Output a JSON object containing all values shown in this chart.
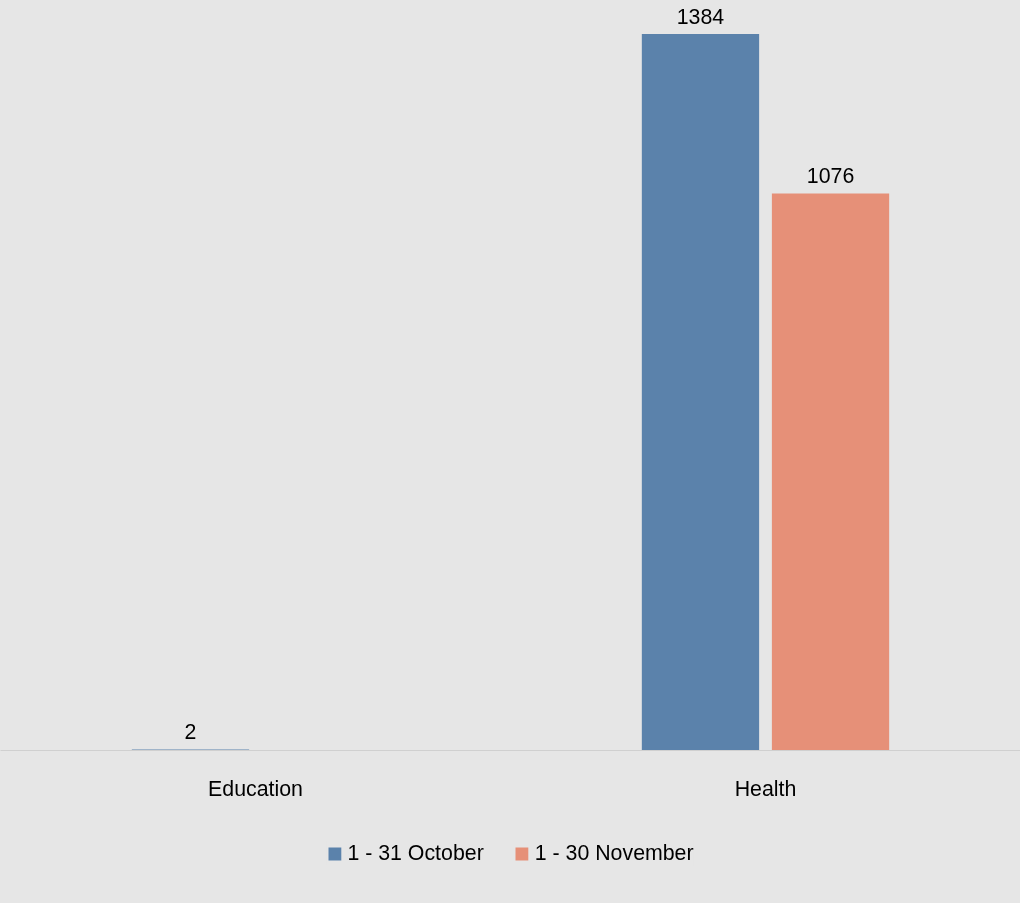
{
  "chart_data": {
    "type": "bar",
    "categories": [
      "Education",
      "Health"
    ],
    "series": [
      {
        "name": "1 - 31 October",
        "color": "#5b82ab",
        "values": [
          2,
          1384
        ]
      },
      {
        "name": "1 - 30 November",
        "color": "#e69078",
        "values": [
          null,
          1076
        ]
      }
    ],
    "data_labels": true,
    "legend": "bottom"
  }
}
